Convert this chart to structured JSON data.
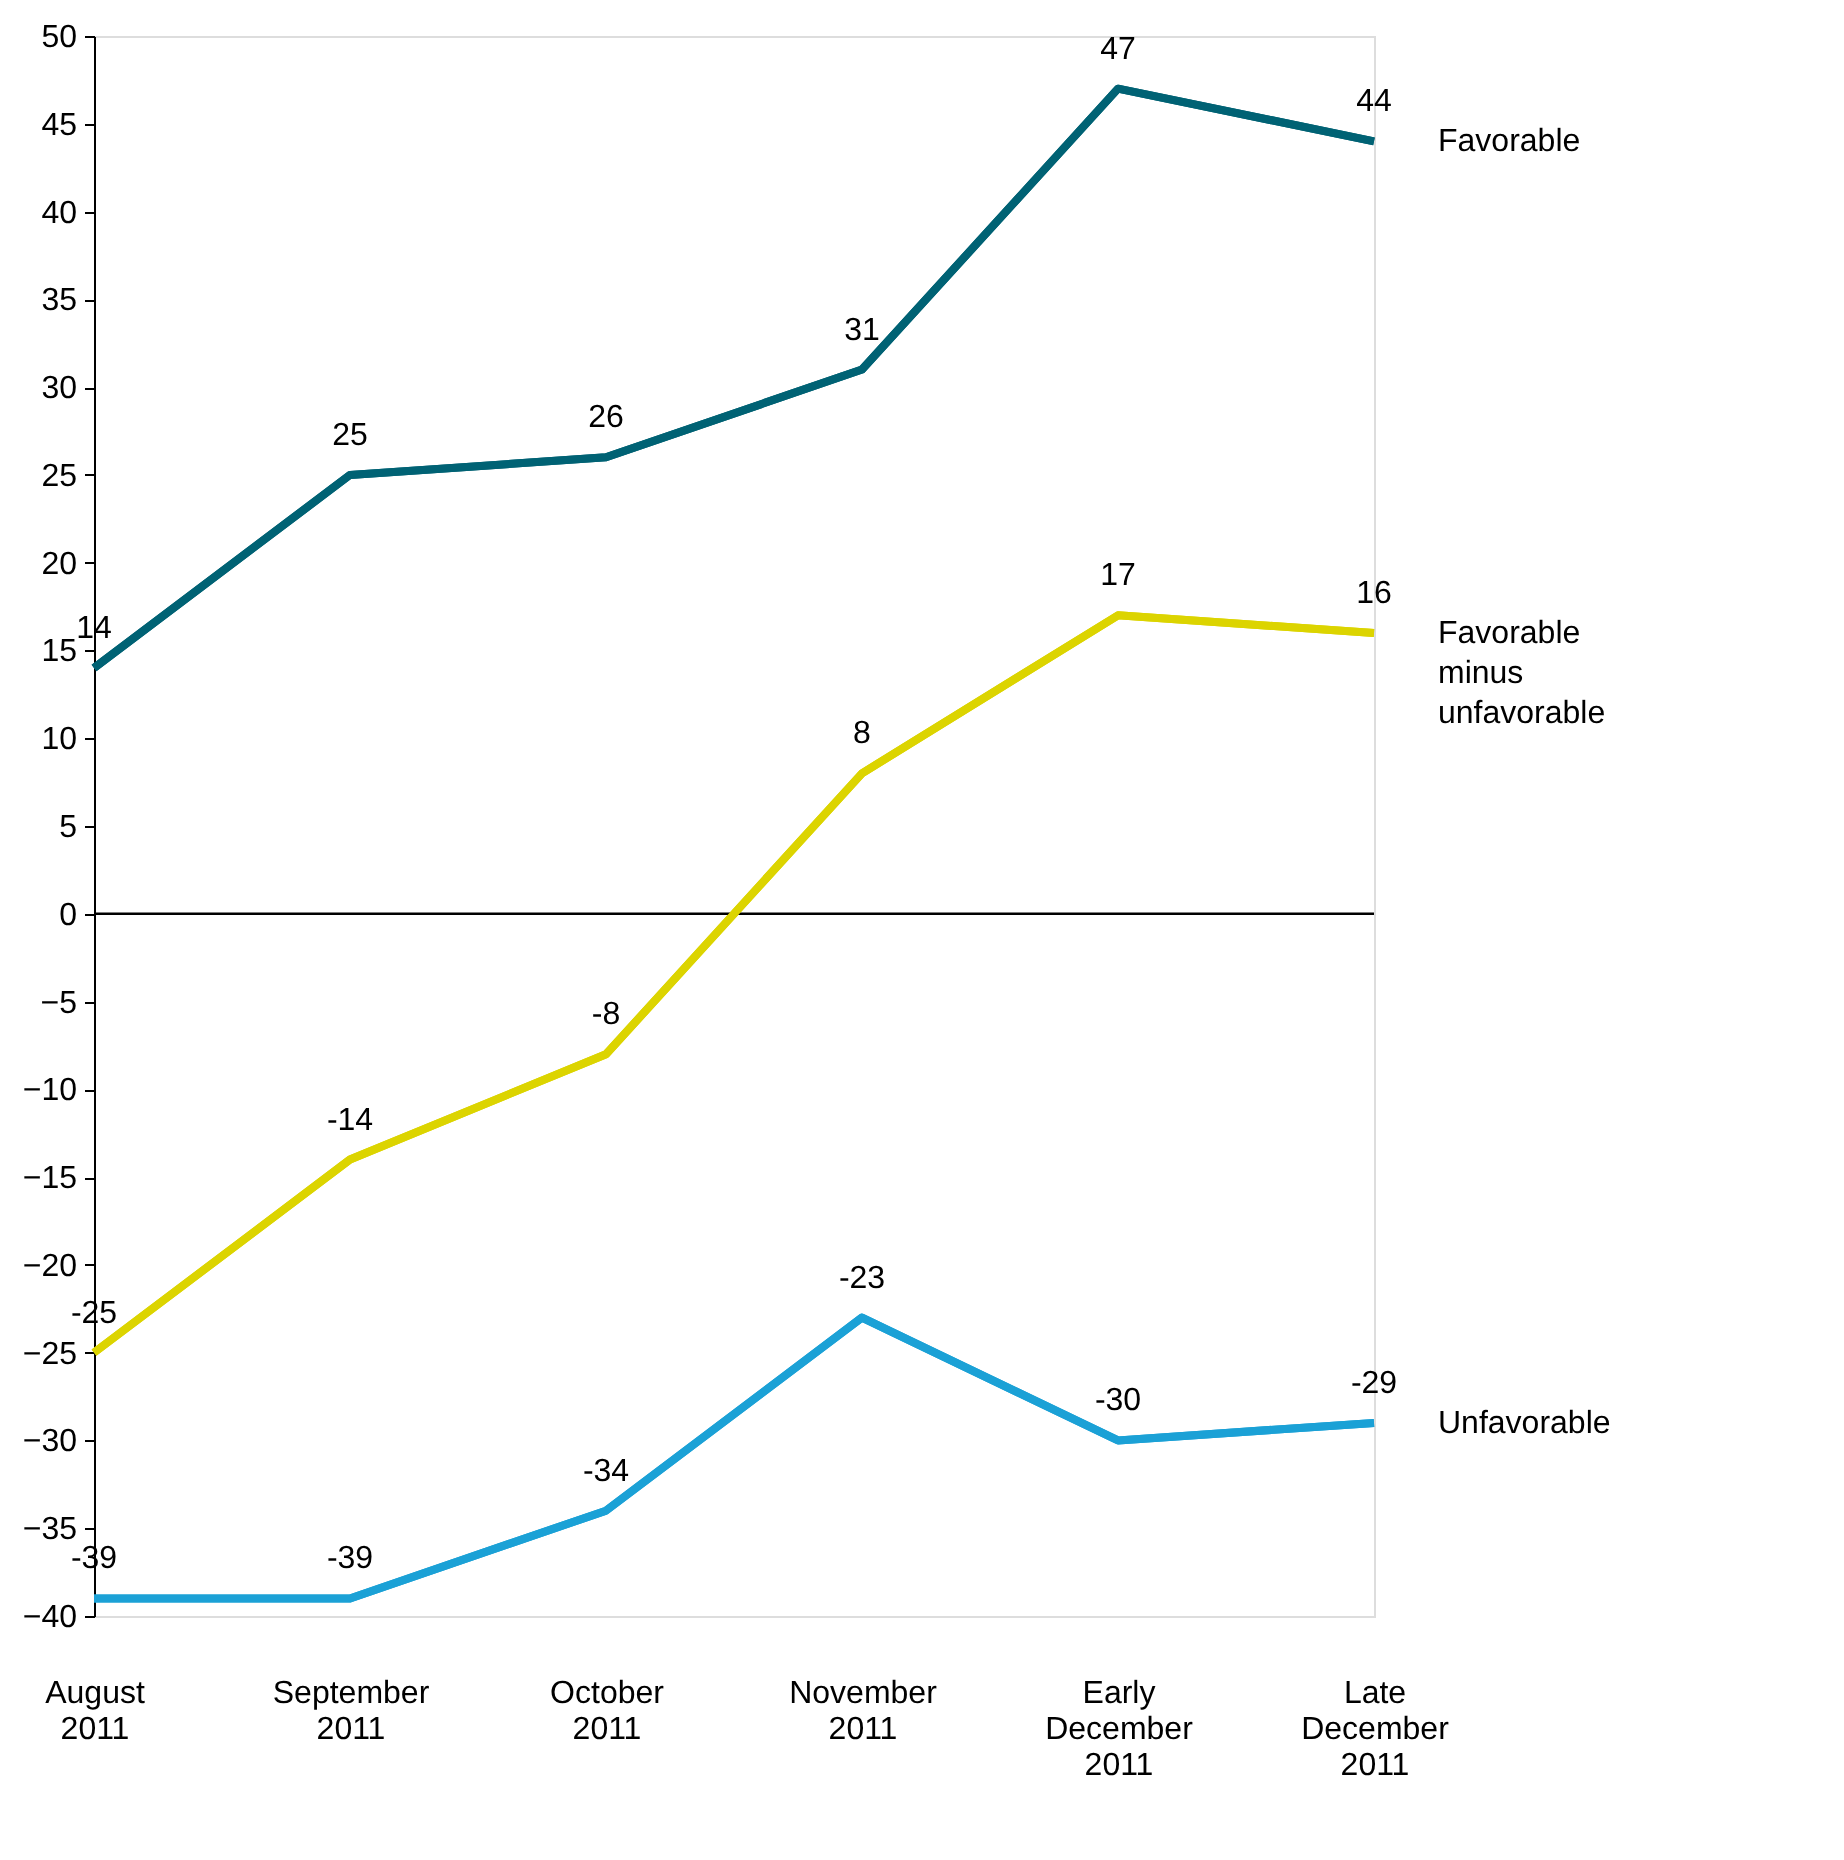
{
  "chart_data": {
    "type": "line",
    "categories": [
      "August 2011",
      "September 2011",
      "October 2011",
      "November 2011",
      "Early December 2011",
      "Late December 2011"
    ],
    "series": [
      {
        "name": "Favorable",
        "color": "#006274",
        "values": [
          14,
          25,
          26,
          31,
          47,
          44
        ]
      },
      {
        "name": "Favorable minus unfavorable",
        "color": "#dcd400",
        "values": [
          -25,
          -14,
          -8,
          8,
          17,
          16
        ]
      },
      {
        "name": "Unfavorable",
        "color": "#1ba1d6",
        "values": [
          -39,
          -39,
          -34,
          -23,
          -30,
          -29
        ]
      }
    ],
    "ylim": [
      -40,
      50
    ],
    "yticks": [
      -40,
      -35,
      -30,
      -25,
      -20,
      -15,
      -10,
      -5,
      0,
      5,
      10,
      15,
      20,
      25,
      30,
      35,
      40,
      45,
      50
    ],
    "ref_lines": [
      {
        "axis": "y",
        "value": 0,
        "color": "#000000"
      }
    ],
    "data_labels": true,
    "grid": false,
    "marker": "none",
    "line_style": "solid"
  }
}
